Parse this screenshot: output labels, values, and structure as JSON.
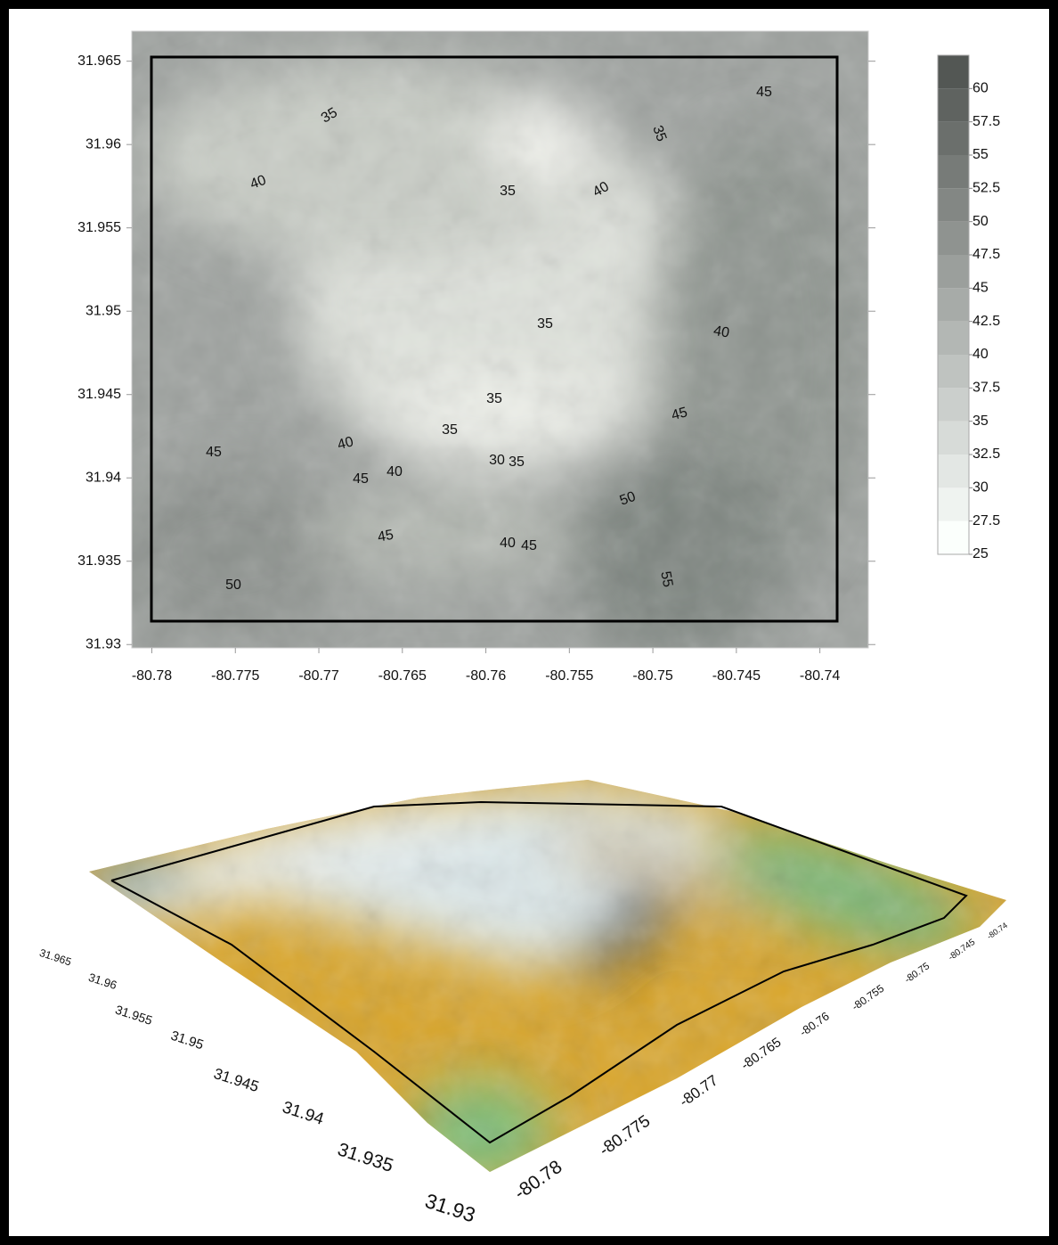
{
  "contour_map": {
    "xlim": [
      -80.7812,
      -80.7371
    ],
    "ylim": [
      31.9298,
      31.9668
    ],
    "xticks": [
      -80.78,
      -80.775,
      -80.77,
      -80.765,
      -80.76,
      -80.755,
      -80.75,
      -80.745,
      -80.74
    ],
    "yticks": [
      31.93,
      31.935,
      31.94,
      31.945,
      31.95,
      31.955,
      31.96,
      31.965
    ],
    "contour_labels": [
      35,
      40,
      35,
      40,
      35,
      45,
      35,
      40,
      35,
      35,
      45,
      40,
      45,
      45,
      40,
      30,
      35,
      50,
      45,
      40,
      45,
      50,
      55
    ],
    "colorbar": {
      "lim": [
        25,
        62.5
      ],
      "ticks": [
        25,
        27.5,
        30,
        32.5,
        35,
        37.5,
        40,
        42.5,
        45,
        47.5,
        50,
        52.5,
        55,
        57.5,
        60
      ]
    }
  },
  "surface_3d": {
    "yticks": [
      31.965,
      31.96,
      31.955,
      31.95,
      31.945,
      31.94,
      31.935,
      31.93
    ],
    "xticks": [
      -80.78,
      -80.775,
      -80.77,
      -80.765,
      -80.76,
      -80.755,
      -80.75,
      -80.745,
      -80.74
    ]
  }
}
